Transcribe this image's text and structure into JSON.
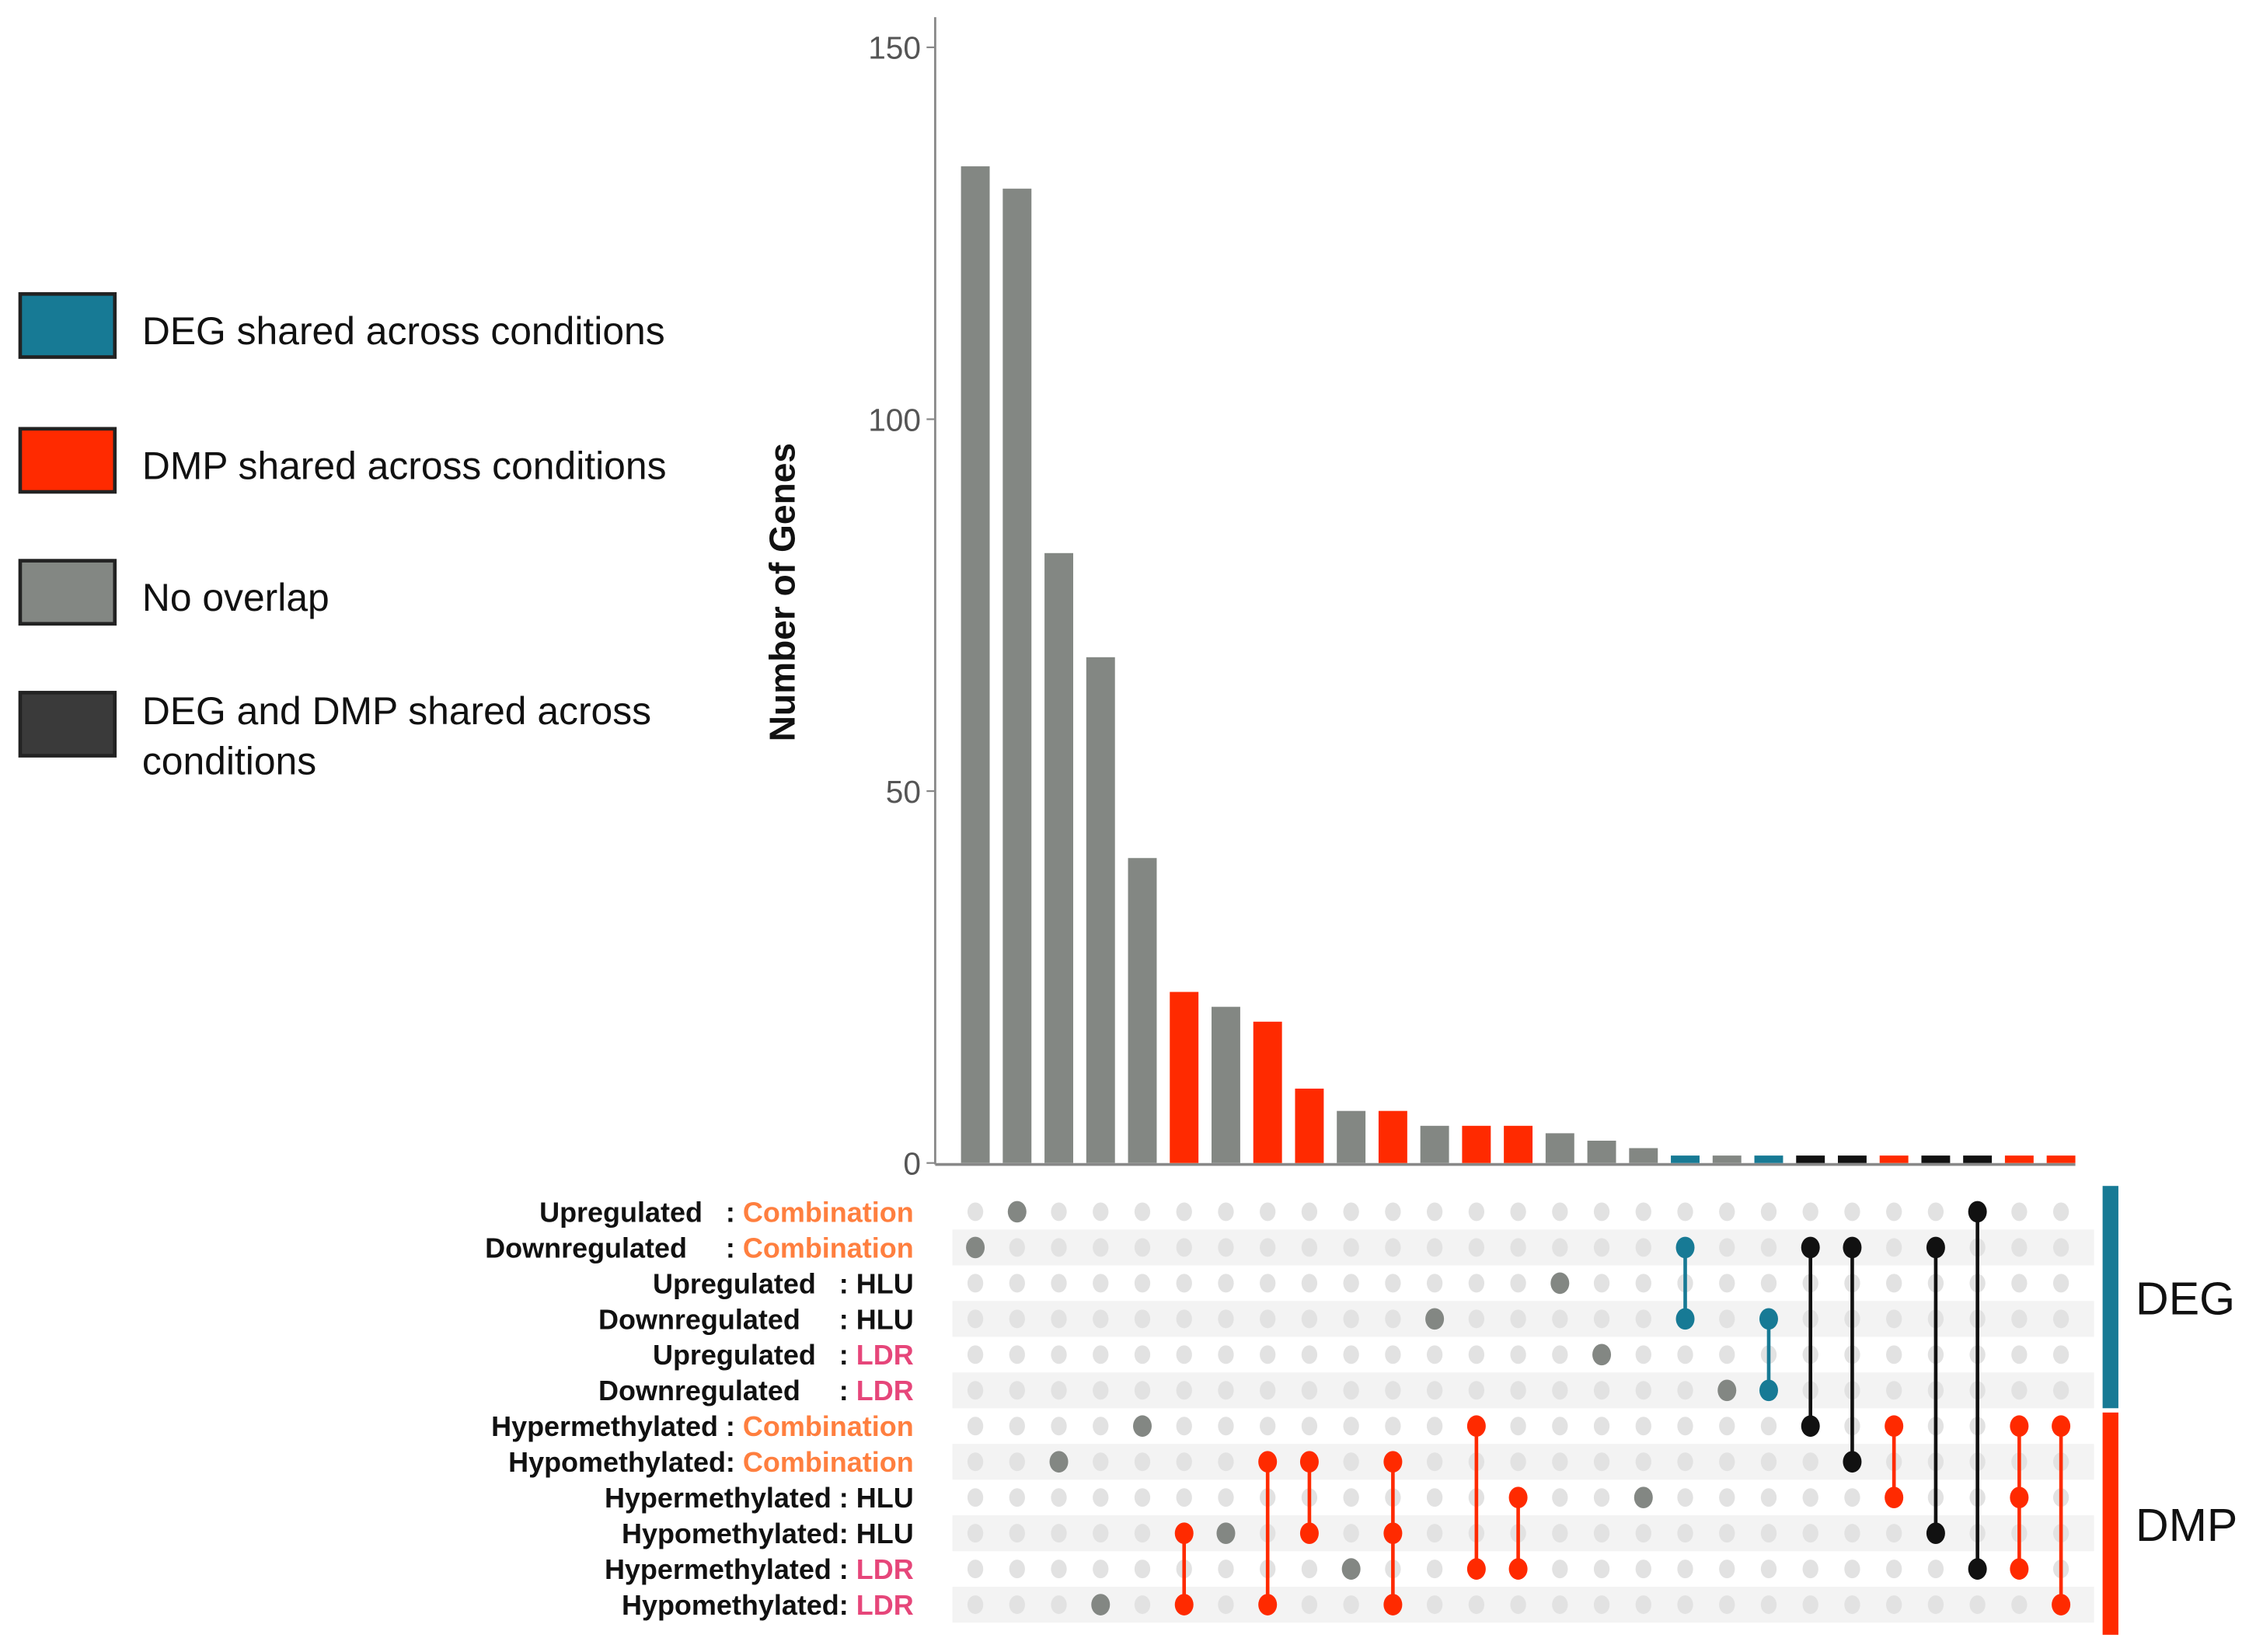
{
  "chart_data": {
    "type": "bar",
    "subtype": "upset",
    "ylabel": "Number of Genes",
    "ylim": [
      0,
      150
    ],
    "yticks": [
      "0",
      "50",
      "100",
      "150"
    ],
    "colors": {
      "deg": "#177a95",
      "dmp": "#ff2a00",
      "none": "#838783",
      "both": "#111111",
      "legend_both": "#3a3a3a",
      "combination": "#ff7f3f",
      "ldr": "#e6467a"
    },
    "legend": [
      {
        "key": "deg",
        "label": "DEG shared across conditions"
      },
      {
        "key": "dmp",
        "label": "DMP shared across conditions"
      },
      {
        "key": "none",
        "label": "No overlap"
      },
      {
        "key": "legend_both",
        "label_line1": "DEG and DMP shared across",
        "label_line2": "conditions"
      }
    ],
    "sets": [
      {
        "prefix": "Upregulated   : ",
        "suffix": "Combination",
        "suffix_color": "combination"
      },
      {
        "prefix": "Downregulated     : ",
        "suffix": "Combination",
        "suffix_color": "combination"
      },
      {
        "prefix": "Upregulated   : ",
        "suffix": "HLU",
        "suffix_color": ""
      },
      {
        "prefix": "Downregulated     : ",
        "suffix": "HLU",
        "suffix_color": ""
      },
      {
        "prefix": "Upregulated   : ",
        "suffix": "LDR",
        "suffix_color": "ldr"
      },
      {
        "prefix": "Downregulated     : ",
        "suffix": "LDR",
        "suffix_color": "ldr"
      },
      {
        "prefix": "Hypermethylated : ",
        "suffix": "Combination",
        "suffix_color": "combination"
      },
      {
        "prefix": "Hypomethylated: ",
        "suffix": "Combination",
        "suffix_color": "combination"
      },
      {
        "prefix": "Hypermethylated : ",
        "suffix": "HLU",
        "suffix_color": ""
      },
      {
        "prefix": "Hypomethylated: ",
        "suffix": "HLU",
        "suffix_color": ""
      },
      {
        "prefix": "Hypermethylated : ",
        "suffix": "LDR",
        "suffix_color": "ldr"
      },
      {
        "prefix": "Hypomethylated: ",
        "suffix": "LDR",
        "suffix_color": "ldr"
      }
    ],
    "set_groups": [
      {
        "label": "DEG",
        "rows": [
          0,
          5
        ],
        "color": "deg"
      },
      {
        "label": "DMP",
        "rows": [
          6,
          11
        ],
        "color": "dmp"
      }
    ],
    "intersections": [
      {
        "value": 134,
        "sets": [
          1
        ],
        "type": "none"
      },
      {
        "value": 131,
        "sets": [
          0
        ],
        "type": "none"
      },
      {
        "value": 82,
        "sets": [
          7
        ],
        "type": "none"
      },
      {
        "value": 68,
        "sets": [
          11
        ],
        "type": "none"
      },
      {
        "value": 41,
        "sets": [
          6
        ],
        "type": "none"
      },
      {
        "value": 23,
        "sets": [
          9,
          11
        ],
        "type": "dmp"
      },
      {
        "value": 21,
        "sets": [
          9
        ],
        "type": "none"
      },
      {
        "value": 19,
        "sets": [
          7,
          11
        ],
        "type": "dmp"
      },
      {
        "value": 10,
        "sets": [
          7,
          9
        ],
        "type": "dmp"
      },
      {
        "value": 7,
        "sets": [
          10
        ],
        "type": "none"
      },
      {
        "value": 7,
        "sets": [
          7,
          9,
          11
        ],
        "type": "dmp"
      },
      {
        "value": 5,
        "sets": [
          3
        ],
        "type": "none"
      },
      {
        "value": 5,
        "sets": [
          6,
          10
        ],
        "type": "dmp"
      },
      {
        "value": 5,
        "sets": [
          8,
          10
        ],
        "type": "dmp"
      },
      {
        "value": 4,
        "sets": [
          2
        ],
        "type": "none"
      },
      {
        "value": 3,
        "sets": [
          4
        ],
        "type": "none"
      },
      {
        "value": 2,
        "sets": [
          8
        ],
        "type": "none"
      },
      {
        "value": 1,
        "sets": [
          1,
          3
        ],
        "type": "deg"
      },
      {
        "value": 1,
        "sets": [
          5
        ],
        "type": "none"
      },
      {
        "value": 1,
        "sets": [
          3,
          5
        ],
        "type": "deg"
      },
      {
        "value": 1,
        "sets": [
          1,
          6
        ],
        "type": "both"
      },
      {
        "value": 1,
        "sets": [
          1,
          7
        ],
        "type": "both"
      },
      {
        "value": 1,
        "sets": [
          6,
          8
        ],
        "type": "dmp"
      },
      {
        "value": 1,
        "sets": [
          1,
          9
        ],
        "type": "both"
      },
      {
        "value": 1,
        "sets": [
          0,
          10
        ],
        "type": "both"
      },
      {
        "value": 1,
        "sets": [
          6,
          8,
          10
        ],
        "type": "dmp"
      },
      {
        "value": 1,
        "sets": [
          6,
          11
        ],
        "type": "dmp"
      }
    ]
  }
}
